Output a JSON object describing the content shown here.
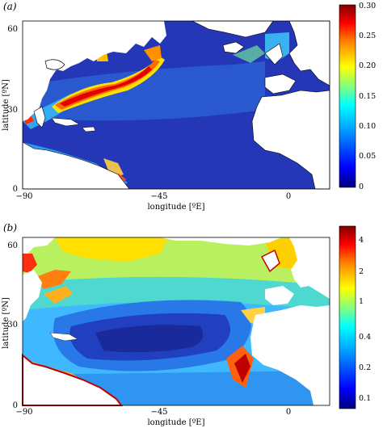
{
  "panels": [
    {
      "id": "a",
      "label": "(a)",
      "xlabel": "longitude [ºE]",
      "ylabel": "latitude [ºN]",
      "x_ticks": [
        "−90",
        "−45",
        "0"
      ],
      "y_ticks": [
        "0",
        "30",
        "60"
      ],
      "colorbar_ticks": [
        "0.30",
        "0.25",
        "0.20",
        "0.15",
        "0.10",
        "0.05",
        "0"
      ],
      "colorbar_scale": "linear"
    },
    {
      "id": "b",
      "label": "(b)",
      "xlabel": "longitude [ºE]",
      "ylabel": "latitude [ºN]",
      "x_ticks": [
        "−90",
        "−45",
        "0"
      ],
      "y_ticks": [
        "0",
        "30",
        "60"
      ],
      "colorbar_ticks": [
        "4",
        "2",
        "1",
        "0.4",
        "0.2",
        "0.1"
      ],
      "colorbar_scale": "log"
    }
  ],
  "colors": {
    "colormap": [
      "#000080",
      "#0000ff",
      "#0080ff",
      "#00ffff",
      "#80ff80",
      "#ffff00",
      "#ff8000",
      "#ff0000",
      "#800000"
    ],
    "land": "#ffffff",
    "coastline": "#000000"
  }
}
